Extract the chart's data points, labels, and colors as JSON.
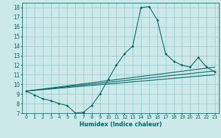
{
  "title": "",
  "xlabel": "Humidex (Indice chaleur)",
  "bg_color": "#cce8e8",
  "grid_color": "#99cccc",
  "line_color": "#006666",
  "xlim": [
    -0.5,
    23.5
  ],
  "ylim": [
    7,
    18.5
  ],
  "yticks": [
    7,
    8,
    9,
    10,
    11,
    12,
    13,
    14,
    15,
    16,
    17,
    18
  ],
  "xticks": [
    0,
    1,
    2,
    3,
    4,
    5,
    6,
    7,
    8,
    9,
    10,
    11,
    12,
    13,
    14,
    15,
    16,
    17,
    18,
    19,
    20,
    21,
    22,
    23
  ],
  "line1_x": [
    0,
    1,
    2,
    3,
    4,
    5,
    6,
    7,
    8,
    9,
    10,
    11,
    12,
    13,
    14,
    15,
    16,
    17,
    18,
    19,
    20,
    21,
    22,
    23
  ],
  "line1_y": [
    9.3,
    8.9,
    8.5,
    8.3,
    8.0,
    7.8,
    7.0,
    7.1,
    7.8,
    9.0,
    10.5,
    12.0,
    13.2,
    14.0,
    18.0,
    18.1,
    16.7,
    13.2,
    12.4,
    12.0,
    11.8,
    12.8,
    11.8,
    11.3
  ],
  "line2_x": [
    0,
    23
  ],
  "line2_y": [
    9.3,
    11.0
  ],
  "line3_x": [
    0,
    23
  ],
  "line3_y": [
    9.3,
    11.4
  ],
  "line4_x": [
    0,
    23
  ],
  "line4_y": [
    9.3,
    11.8
  ]
}
